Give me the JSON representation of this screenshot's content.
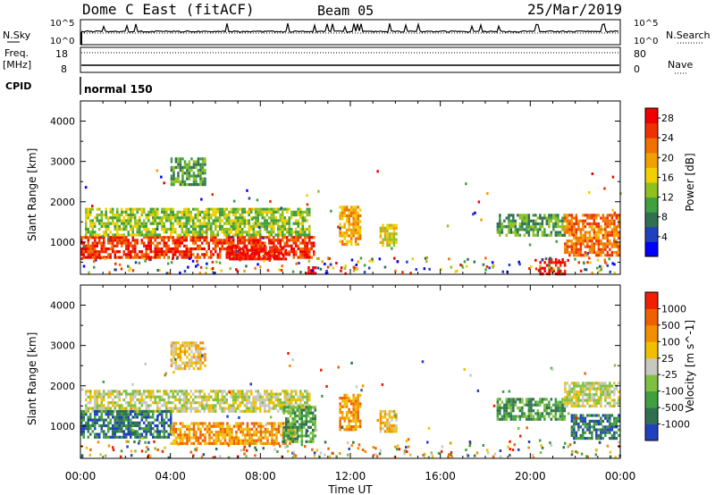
{
  "header": {
    "station": "Dome C East (fitACF)",
    "beam": "Beam 05",
    "date": "25/Mar/2019"
  },
  "status_panel": {
    "nsky_label": "N.Sky",
    "nsearch_label": "N.Search",
    "freq_label": "Freq.",
    "freq_unit": "[MHz]",
    "nave_label": "Nave",
    "cpid_label": "CPID",
    "cpid_value": "normal 150",
    "noise_ticks": [
      "10^5",
      "10^0"
    ],
    "freq_ticks": [
      "18",
      "8"
    ],
    "nave_ticks": [
      "80",
      "0"
    ]
  },
  "x_axis": {
    "label": "Time UT",
    "ticks": [
      "00:00",
      "04:00",
      "08:00",
      "12:00",
      "16:00",
      "20:00",
      "00:00"
    ]
  },
  "chart_data": [
    {
      "type": "heatmap",
      "panel": "power",
      "xlabel": "Time UT",
      "ylabel": "Slant Range [km]",
      "xlim_hours": [
        0,
        24
      ],
      "ylim_km": [
        200,
        4500
      ],
      "yticks": [
        1000,
        2000,
        3000,
        4000
      ],
      "colorbar": {
        "label": "Power [dB]",
        "ticks": [
          "4",
          "8",
          "12",
          "16",
          "20",
          "24",
          "28"
        ],
        "range": [
          0,
          30
        ],
        "colors": [
          "#0000ff",
          "#2040c0",
          "#307050",
          "#40a040",
          "#90c020",
          "#f0d000",
          "#f0a000",
          "#f07000",
          "#f03000",
          "#f00000"
        ]
      },
      "regions": [
        {
          "t": [
            0.0,
            10.4
          ],
          "r": [
            650,
            1150
          ],
          "level": 8
        },
        {
          "t": [
            0.2,
            10.2
          ],
          "r": [
            1150,
            1850
          ],
          "level": 4
        },
        {
          "t": [
            6.5,
            9.2
          ],
          "r": [
            600,
            900
          ],
          "level": 9
        },
        {
          "t": [
            10.0,
            10.4
          ],
          "r": [
            200,
            400
          ],
          "level": 9
        },
        {
          "t": [
            11.5,
            12.4
          ],
          "r": [
            950,
            1900
          ],
          "level": 6
        },
        {
          "t": [
            13.3,
            14.0
          ],
          "r": [
            900,
            1450
          ],
          "level": 5
        },
        {
          "t": [
            18.5,
            21.5
          ],
          "r": [
            1200,
            1700
          ],
          "level": 3
        },
        {
          "t": [
            20.4,
            21.5
          ],
          "r": [
            200,
            600
          ],
          "level": 9
        },
        {
          "t": [
            21.5,
            23.9
          ],
          "r": [
            700,
            1700
          ],
          "level": 7
        },
        {
          "t": [
            4.0,
            5.5
          ],
          "r": [
            2400,
            3100
          ],
          "level": 3
        }
      ]
    },
    {
      "type": "heatmap",
      "panel": "velocity",
      "xlabel": "Time UT",
      "ylabel": "Slant Range [km]",
      "xlim_hours": [
        0,
        24
      ],
      "ylim_km": [
        200,
        4500
      ],
      "yticks": [
        1000,
        2000,
        3000,
        4000
      ],
      "colorbar": {
        "label": "Velocity [m s^-1]",
        "ticks": [
          "1000",
          "500",
          "100",
          "25",
          "-25",
          "-100",
          "-500",
          "-1000"
        ],
        "colors": [
          "#2040c0",
          "#307050",
          "#40a040",
          "#80c040",
          "#c8c8c0",
          "#f0c000",
          "#f09000",
          "#f06000",
          "#f02000"
        ]
      },
      "regions": [
        {
          "t": [
            0.2,
            10.2
          ],
          "r": [
            1400,
            1900
          ],
          "level": 4
        },
        {
          "t": [
            0.0,
            4.0
          ],
          "r": [
            700,
            1400
          ],
          "level": 1
        },
        {
          "t": [
            4.0,
            9.5
          ],
          "r": [
            600,
            1100
          ],
          "level": 6
        },
        {
          "t": [
            9.0,
            10.4
          ],
          "r": [
            600,
            1500
          ],
          "level": 2
        },
        {
          "t": [
            11.5,
            12.4
          ],
          "r": [
            900,
            1800
          ],
          "level": 6
        },
        {
          "t": [
            13.3,
            14.0
          ],
          "r": [
            900,
            1400
          ],
          "level": 5
        },
        {
          "t": [
            18.5,
            21.5
          ],
          "r": [
            1200,
            1700
          ],
          "level": 2
        },
        {
          "t": [
            21.5,
            23.9
          ],
          "r": [
            1500,
            2100
          ],
          "level": 4
        },
        {
          "t": [
            21.8,
            23.9
          ],
          "r": [
            700,
            1300
          ],
          "level": 1
        },
        {
          "t": [
            4.0,
            5.5
          ],
          "r": [
            2400,
            3100
          ],
          "level": 5
        }
      ]
    }
  ]
}
